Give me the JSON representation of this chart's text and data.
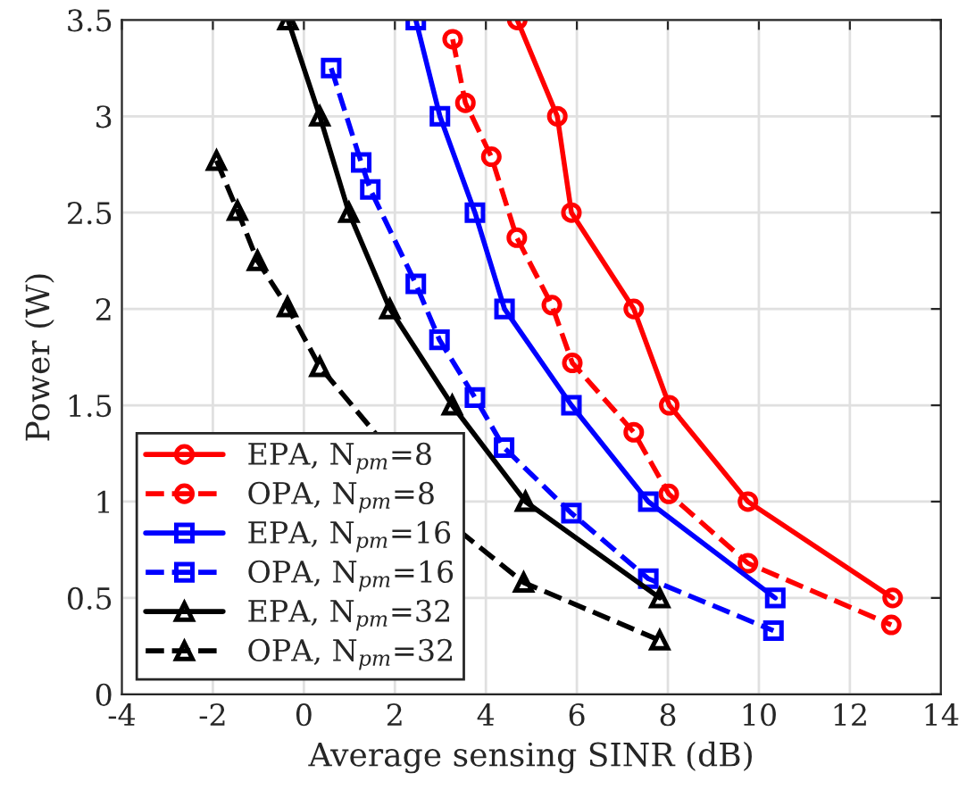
{
  "chart_data": {
    "type": "line",
    "xlabel": "Average sensing SINR (dB)",
    "ylabel": "Power (W)",
    "xlim": [
      -4,
      14
    ],
    "xticks": [
      -4,
      -2,
      0,
      2,
      4,
      6,
      8,
      10,
      12,
      14
    ],
    "ylim": [
      0,
      3.5
    ],
    "yticks": [
      0,
      0.5,
      1,
      1.5,
      2,
      2.5,
      3,
      3.5
    ],
    "grid": true,
    "legend": "bottom left",
    "series": [
      {
        "name": "EPA, N$_{pm}$=8",
        "color": "#ff0000",
        "marker": "circle",
        "line_style": "solid",
        "x": [
          4.69,
          5.57,
          5.88,
          7.25,
          8.03,
          9.76,
          12.94
        ],
        "values": [
          3.5,
          3.0,
          2.5,
          2.0,
          1.5,
          1.0,
          0.5
        ]
      },
      {
        "name": "OPA, N$_{pm}$=8",
        "color": "#ff0000",
        "marker": "circle",
        "line_style": "dashed",
        "x": [
          3.27,
          3.55,
          4.12,
          4.68,
          5.45,
          5.9,
          7.25,
          8.02,
          9.76,
          12.91
        ],
        "values": [
          3.4,
          3.07,
          2.79,
          2.37,
          2.02,
          1.72,
          1.36,
          1.04,
          0.68,
          0.36
        ]
      },
      {
        "name": "EPA, N$_{pm}$=16",
        "color": "#0000ff",
        "marker": "square",
        "line_style": "solid",
        "x": [
          2.46,
          2.99,
          3.76,
          4.41,
          5.88,
          7.57,
          10.36
        ],
        "values": [
          3.5,
          3.0,
          2.5,
          2.0,
          1.5,
          1.0,
          0.5
        ]
      },
      {
        "name": "OPA, N$_{pm}$=16",
        "color": "#0000ff",
        "marker": "square",
        "line_style": "dashed",
        "x": [
          0.6,
          1.26,
          1.46,
          2.46,
          2.98,
          3.76,
          4.4,
          5.88,
          7.57,
          10.32
        ],
        "values": [
          3.25,
          2.76,
          2.62,
          2.13,
          1.84,
          1.54,
          1.28,
          0.94,
          0.6,
          0.33
        ]
      },
      {
        "name": "EPA, N$_{pm}$=32",
        "color": "#000000",
        "marker": "triangle",
        "line_style": "solid",
        "x": [
          -0.35,
          0.35,
          0.99,
          1.89,
          3.26,
          4.87,
          7.82
        ],
        "values": [
          3.5,
          3.0,
          2.5,
          2.0,
          1.5,
          1.0,
          0.5
        ]
      },
      {
        "name": "OPA, N$_{pm}$=32",
        "color": "#000000",
        "marker": "triangle",
        "line_style": "dashed",
        "x": [
          -1.92,
          -1.46,
          -1.02,
          -0.36,
          0.35,
          3.25,
          4.83,
          7.82
        ],
        "values": [
          2.77,
          2.51,
          2.25,
          2.01,
          1.7,
          0.88,
          0.58,
          0.28
        ]
      }
    ]
  }
}
